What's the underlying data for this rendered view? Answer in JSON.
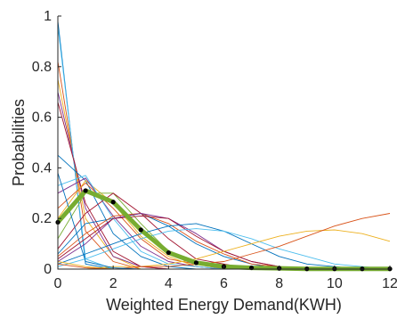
{
  "chart_data": {
    "type": "line",
    "title": "",
    "xlabel": "Weighted Energy Demand(KWH)",
    "ylabel": "Probabilities",
    "xlim": [
      0,
      12
    ],
    "ylim": [
      0,
      1
    ],
    "x_ticks": [
      "0",
      "2",
      "4",
      "6",
      "8",
      "10",
      "12"
    ],
    "y_ticks": [
      "0",
      "0.2",
      "0.4",
      "0.6",
      "0.8",
      "1"
    ],
    "grid": false,
    "legend": "none",
    "x": [
      0,
      1,
      2,
      3,
      4,
      5,
      6,
      7,
      8,
      9,
      10,
      11,
      12
    ],
    "highlight": {
      "color": "#77ac30",
      "marker_color": "#000000",
      "values": [
        0.185,
        0.31,
        0.265,
        0.155,
        0.065,
        0.025,
        0.01,
        0.005,
        0.003,
        0.001,
        0.001,
        0.001,
        0.001
      ]
    },
    "background_series": [
      {
        "color": "#0072bd",
        "values": [
          0.98,
          0.02,
          0,
          0,
          0,
          0,
          0,
          0,
          0,
          0,
          0,
          0,
          0
        ]
      },
      {
        "color": "#d95319",
        "values": [
          0.82,
          0.15,
          0.03,
          0,
          0,
          0,
          0,
          0,
          0,
          0,
          0,
          0,
          0
        ]
      },
      {
        "color": "#edb120",
        "values": [
          0.75,
          0.2,
          0.05,
          0,
          0,
          0,
          0,
          0,
          0,
          0,
          0,
          0,
          0
        ]
      },
      {
        "color": "#7e2f8e",
        "values": [
          0.7,
          0.24,
          0.05,
          0.01,
          0,
          0,
          0,
          0,
          0,
          0,
          0,
          0,
          0
        ]
      },
      {
        "color": "#4dbeee",
        "values": [
          0.96,
          0.04,
          0,
          0,
          0,
          0,
          0,
          0,
          0,
          0,
          0,
          0,
          0
        ]
      },
      {
        "color": "#a2142f",
        "values": [
          0.66,
          0.26,
          0.07,
          0.01,
          0,
          0,
          0,
          0,
          0,
          0,
          0,
          0,
          0
        ]
      },
      {
        "color": "#0072bd",
        "values": [
          0.45,
          0.35,
          0.14,
          0.05,
          0.01,
          0,
          0,
          0,
          0,
          0,
          0,
          0,
          0
        ]
      },
      {
        "color": "#d95319",
        "values": [
          0.24,
          0.34,
          0.24,
          0.12,
          0.04,
          0.02,
          0,
          0,
          0,
          0,
          0,
          0,
          0
        ]
      },
      {
        "color": "#edb120",
        "values": [
          0.2,
          0.35,
          0.26,
          0.13,
          0.05,
          0.01,
          0,
          0,
          0,
          0,
          0,
          0,
          0
        ]
      },
      {
        "color": "#7e2f8e",
        "values": [
          0.3,
          0.36,
          0.21,
          0.09,
          0.03,
          0.01,
          0,
          0,
          0,
          0,
          0,
          0,
          0
        ]
      },
      {
        "color": "#77ac30",
        "values": [
          0.12,
          0.3,
          0.3,
          0.18,
          0.07,
          0.02,
          0.01,
          0,
          0,
          0,
          0,
          0,
          0
        ]
      },
      {
        "color": "#4dbeee",
        "values": [
          0.33,
          0.37,
          0.2,
          0.07,
          0.02,
          0.01,
          0,
          0,
          0,
          0,
          0,
          0,
          0
        ]
      },
      {
        "color": "#a2142f",
        "values": [
          0.08,
          0.22,
          0.3,
          0.22,
          0.12,
          0.04,
          0.02,
          0,
          0,
          0,
          0,
          0,
          0
        ]
      },
      {
        "color": "#0072bd",
        "values": [
          0.06,
          0.18,
          0.2,
          0.22,
          0.17,
          0.1,
          0.05,
          0.02,
          0,
          0,
          0,
          0,
          0
        ]
      },
      {
        "color": "#d95319",
        "values": [
          0.05,
          0.14,
          0.21,
          0.22,
          0.18,
          0.11,
          0.06,
          0.02,
          0.01,
          0,
          0,
          0,
          0
        ]
      },
      {
        "color": "#7e2f8e",
        "values": [
          0.03,
          0.1,
          0.2,
          0.22,
          0.2,
          0.14,
          0.07,
          0.03,
          0.01,
          0,
          0,
          0,
          0
        ]
      },
      {
        "color": "#a2142f",
        "values": [
          0.04,
          0.12,
          0.2,
          0.21,
          0.2,
          0.13,
          0.07,
          0.03,
          0.01,
          0,
          0,
          0,
          0
        ]
      },
      {
        "color": "#0072bd",
        "values": [
          0.02,
          0.06,
          0.1,
          0.14,
          0.17,
          0.18,
          0.15,
          0.1,
          0.05,
          0.02,
          0.01,
          0,
          0
        ]
      },
      {
        "color": "#4dbeee",
        "values": [
          0.01,
          0.04,
          0.08,
          0.12,
          0.15,
          0.16,
          0.15,
          0.12,
          0.08,
          0.05,
          0.02,
          0.01,
          0
        ]
      },
      {
        "color": "#edb120",
        "values": [
          0,
          0,
          0.01,
          0.01,
          0.02,
          0.04,
          0.07,
          0.1,
          0.13,
          0.15,
          0.155,
          0.14,
          0.11
        ]
      },
      {
        "color": "#d95319",
        "values": [
          0,
          0,
          0,
          0.01,
          0.01,
          0.02,
          0.03,
          0.06,
          0.09,
          0.13,
          0.17,
          0.2,
          0.22
        ]
      },
      {
        "color": "#0072bd",
        "values": [
          0.38,
          0.03,
          0.005,
          0,
          0,
          0,
          0,
          0,
          0,
          0,
          0,
          0,
          0
        ]
      },
      {
        "color": "#edb120",
        "values": [
          0.03,
          0.01,
          0,
          0,
          0,
          0,
          0,
          0,
          0,
          0,
          0,
          0,
          0
        ]
      },
      {
        "color": "#d95319",
        "values": [
          0.02,
          0.005,
          0,
          0,
          0,
          0,
          0,
          0,
          0,
          0,
          0,
          0,
          0
        ]
      }
    ]
  }
}
